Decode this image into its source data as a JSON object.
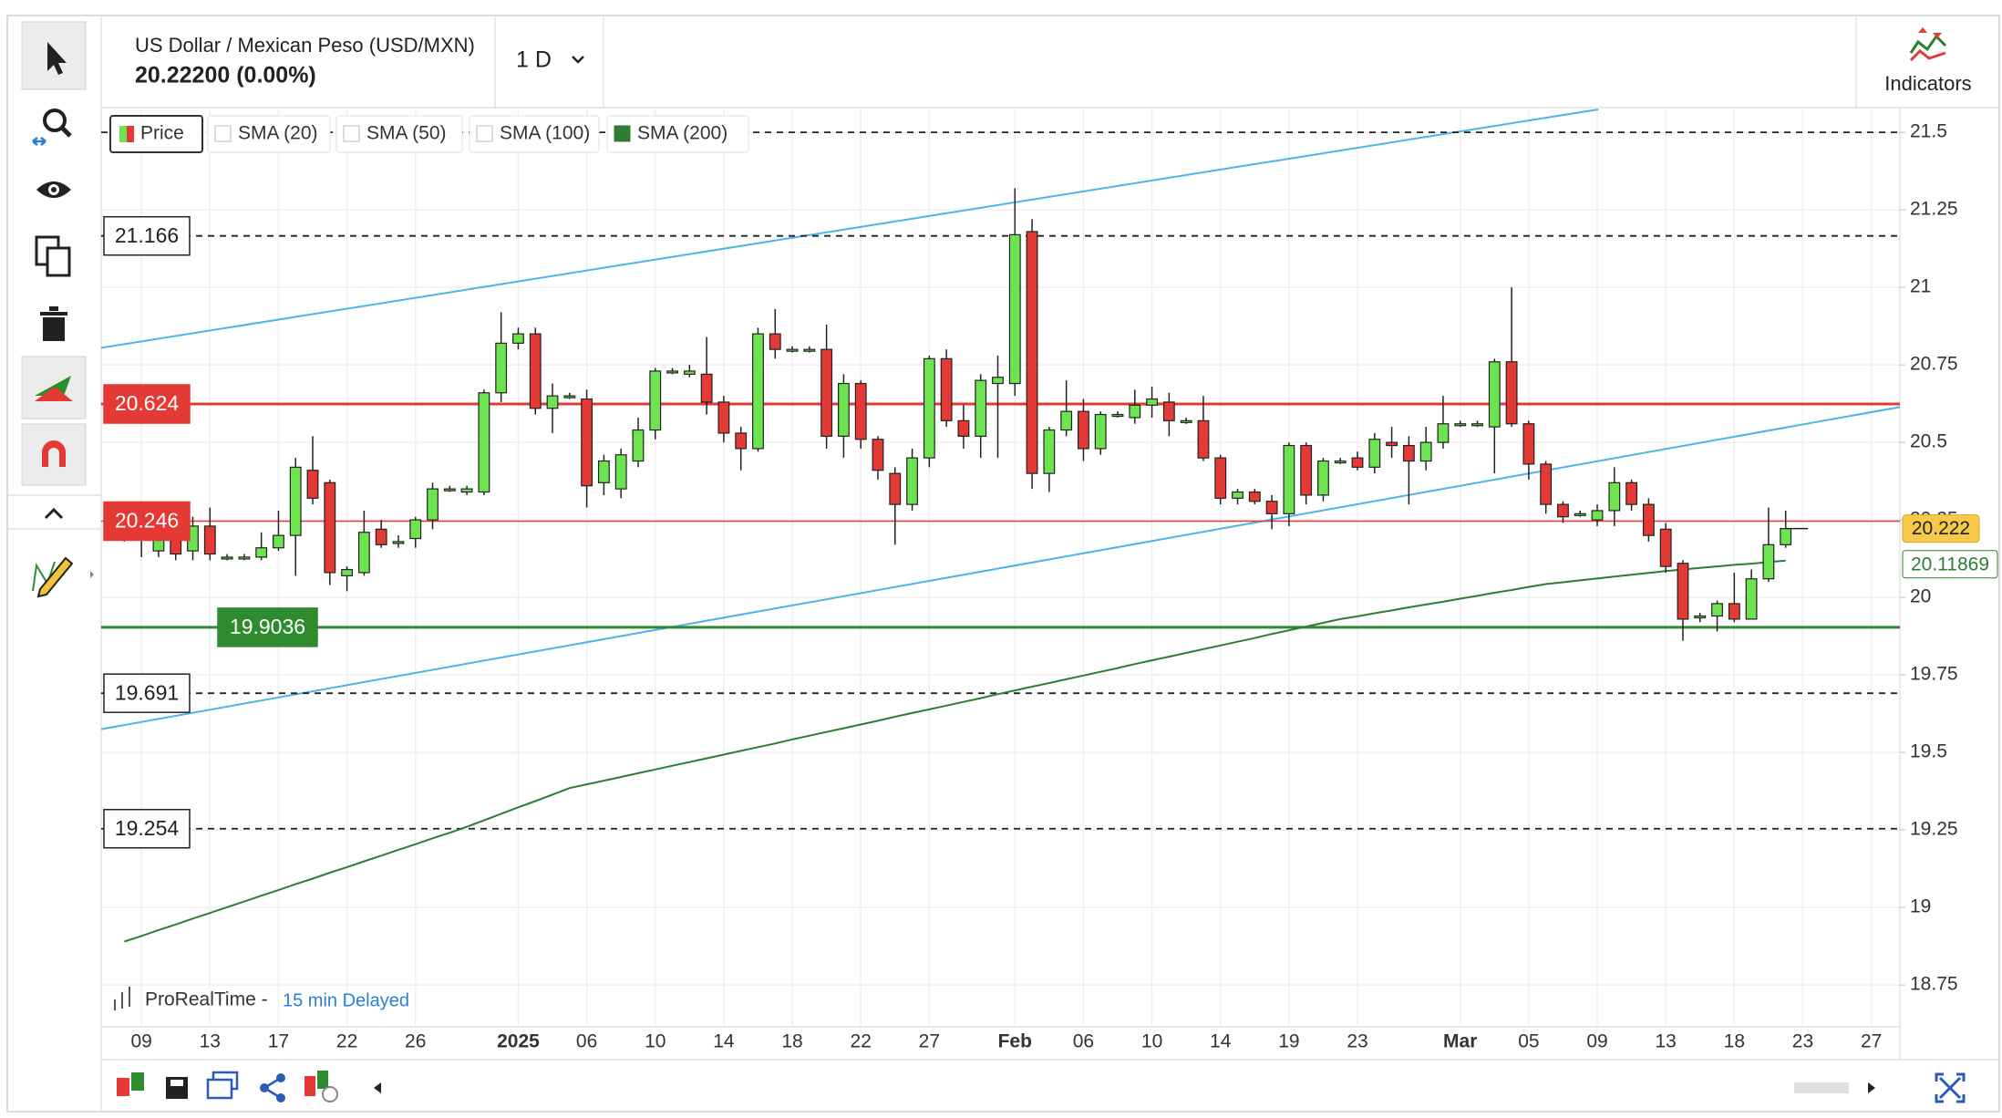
{
  "ui": {
    "instrument": "US Dollar / Mexican Peso (USD/MXN)",
    "quote": "20.22200 (0.00%)",
    "interval": "1 D",
    "indicators": "Indicators",
    "source": "ProRealTime -",
    "delay": "15 min Delayed"
  },
  "chart_data": {
    "type": "candlestick",
    "legend": [
      {
        "name": "Price"
      },
      {
        "name": "SMA (20)",
        "checked": false
      },
      {
        "name": "SMA (50)",
        "checked": false
      },
      {
        "name": "SMA (100)",
        "checked": false
      },
      {
        "name": "SMA (200)",
        "checked": true
      }
    ],
    "categories": [
      null,
      "09",
      null,
      null,
      null,
      "13",
      null,
      null,
      null,
      "17",
      null,
      null,
      null,
      "22",
      null,
      null,
      null,
      "26",
      null,
      null,
      null,
      null,
      null,
      "2025",
      null,
      null,
      null,
      "06",
      null,
      null,
      null,
      "10",
      null,
      null,
      null,
      "14",
      null,
      null,
      null,
      "18",
      null,
      null,
      null,
      "22",
      null,
      null,
      null,
      "27",
      null,
      null,
      null,
      null,
      "Feb",
      null,
      null,
      null,
      "06",
      null,
      null,
      null,
      "10",
      null,
      null,
      null,
      "14",
      null,
      null,
      null,
      "19",
      null,
      null,
      null,
      "23",
      null,
      null,
      null,
      null,
      null,
      "Mar",
      null,
      null,
      null,
      "05",
      null,
      null,
      null,
      "09",
      null,
      null,
      null,
      "13",
      null,
      null,
      null,
      "18",
      null,
      null,
      null,
      "23",
      null,
      null,
      null,
      "27"
    ],
    "open": [
      20.22,
      20.21,
      20.15,
      20.24,
      20.15,
      20.23,
      20.13,
      20.13,
      20.13,
      20.16,
      20.2,
      20.41,
      20.37,
      20.07,
      20.08,
      20.22,
      20.18,
      20.19,
      20.25,
      20.35,
      20.34,
      20.34,
      20.66,
      20.82,
      20.85,
      20.61,
      20.65,
      20.64,
      20.37,
      20.35,
      20.44,
      20.54,
      20.73,
      20.72,
      20.72,
      20.63,
      20.53,
      20.48,
      20.85,
      20.8,
      20.8,
      20.8,
      20.52,
      20.69,
      20.51,
      20.4,
      20.3,
      20.45,
      20.77,
      20.57,
      20.52,
      20.69,
      20.69,
      21.18,
      20.4,
      20.54,
      20.6,
      20.48,
      20.59,
      20.58,
      20.62,
      20.63,
      20.57,
      20.57,
      20.45,
      20.32,
      20.34,
      20.31,
      20.27,
      20.49,
      20.33,
      20.44,
      20.45,
      20.42,
      20.5,
      20.49,
      20.44,
      20.5,
      20.56,
      20.56,
      20.55,
      20.76,
      20.56,
      20.43,
      20.3,
      20.27,
      20.25,
      20.28,
      20.37,
      20.3,
      20.22,
      20.11,
      19.94,
      19.94,
      19.98,
      19.93,
      20.06,
      20.17,
      null,
      null,
      null,
      null,
      null
    ],
    "high": [
      20.26,
      20.24,
      20.3,
      20.27,
      20.26,
      20.29,
      20.14,
      20.14,
      20.21,
      20.28,
      20.45,
      20.52,
      20.38,
      20.1,
      20.28,
      20.25,
      20.2,
      20.26,
      20.37,
      20.36,
      20.36,
      20.67,
      20.92,
      20.87,
      20.87,
      20.69,
      20.66,
      20.67,
      20.46,
      20.48,
      20.58,
      20.74,
      20.74,
      20.75,
      20.84,
      20.65,
      20.55,
      20.87,
      20.93,
      20.81,
      20.81,
      20.88,
      20.72,
      20.7,
      20.52,
      20.42,
      20.48,
      20.78,
      20.8,
      20.62,
      20.72,
      20.78,
      21.32,
      21.22,
      20.55,
      20.7,
      20.64,
      20.6,
      20.6,
      20.67,
      20.68,
      20.66,
      20.58,
      20.65,
      20.46,
      20.35,
      20.35,
      20.33,
      20.5,
      20.5,
      20.45,
      20.45,
      20.47,
      20.53,
      20.55,
      20.52,
      20.55,
      20.65,
      20.57,
      20.57,
      20.77,
      21.0,
      20.57,
      20.44,
      20.31,
      20.28,
      20.3,
      20.42,
      20.38,
      20.32,
      20.24,
      20.12,
      19.95,
      19.99,
      20.08,
      20.09,
      20.29,
      20.28,
      null,
      null,
      null,
      null,
      null
    ],
    "low": [
      20.18,
      20.13,
      20.13,
      20.12,
      20.12,
      20.12,
      20.12,
      20.12,
      20.12,
      20.15,
      20.07,
      20.3,
      20.04,
      20.02,
      20.07,
      20.16,
      20.16,
      20.16,
      20.22,
      20.34,
      20.33,
      20.33,
      20.63,
      20.8,
      20.59,
      20.53,
      20.64,
      20.29,
      20.33,
      20.32,
      20.42,
      20.51,
      20.72,
      20.71,
      20.59,
      20.5,
      20.41,
      20.47,
      20.77,
      20.79,
      20.79,
      20.48,
      20.45,
      20.48,
      20.38,
      20.17,
      20.28,
      20.42,
      20.55,
      20.48,
      20.45,
      20.45,
      20.65,
      20.35,
      20.34,
      20.52,
      20.44,
      20.46,
      20.58,
      20.56,
      20.58,
      20.52,
      20.56,
      20.44,
      20.3,
      20.3,
      20.3,
      20.22,
      20.23,
      20.3,
      20.31,
      20.43,
      20.41,
      20.4,
      20.45,
      20.3,
      20.41,
      20.48,
      20.55,
      20.55,
      20.4,
      20.55,
      20.38,
      20.27,
      20.24,
      20.26,
      20.23,
      20.23,
      20.28,
      20.18,
      20.08,
      19.86,
      19.92,
      19.89,
      19.92,
      19.93,
      20.05,
      20.16,
      null,
      null,
      null,
      null,
      null
    ],
    "close": [
      20.2,
      20.19,
      20.24,
      20.14,
      20.23,
      20.14,
      20.13,
      20.13,
      20.16,
      20.2,
      20.42,
      20.32,
      20.08,
      20.09,
      20.21,
      20.17,
      20.18,
      20.25,
      20.35,
      20.35,
      20.35,
      20.66,
      20.82,
      20.85,
      20.61,
      20.65,
      20.65,
      20.36,
      20.44,
      20.46,
      20.54,
      20.73,
      20.73,
      20.73,
      20.63,
      20.53,
      20.48,
      20.85,
      20.8,
      20.8,
      20.8,
      20.52,
      20.69,
      20.51,
      20.41,
      20.3,
      20.45,
      20.77,
      20.57,
      20.52,
      20.7,
      20.71,
      21.17,
      20.4,
      20.54,
      20.6,
      20.48,
      20.59,
      20.59,
      20.62,
      20.64,
      20.57,
      20.57,
      20.45,
      20.32,
      20.34,
      20.31,
      20.27,
      20.49,
      20.33,
      20.44,
      20.44,
      20.42,
      20.51,
      20.49,
      20.44,
      20.5,
      20.56,
      20.56,
      20.56,
      20.76,
      20.56,
      20.43,
      20.3,
      20.26,
      20.27,
      20.28,
      20.37,
      20.3,
      20.2,
      20.1,
      19.93,
      19.94,
      19.98,
      19.93,
      20.06,
      20.17,
      20.222,
      null,
      null,
      null,
      null,
      null
    ],
    "up_color": "#6de34f",
    "down_color": "#e53935",
    "sma": {
      "color": "#2e7d32",
      "values": [
        18.89,
        18.908,
        18.927,
        18.945,
        18.964,
        18.982,
        19.001,
        19.019,
        19.038,
        19.056,
        19.075,
        19.093,
        19.112,
        19.13,
        19.149,
        19.167,
        19.186,
        19.204,
        19.223,
        19.241,
        19.26,
        19.281,
        19.302,
        19.323,
        19.343,
        19.364,
        19.385,
        19.397,
        19.409,
        19.421,
        19.433,
        19.445,
        19.457,
        19.469,
        19.481,
        19.493,
        19.505,
        19.517,
        19.529,
        19.542,
        19.554,
        19.566,
        19.578,
        19.59,
        19.602,
        19.615,
        19.627,
        19.639,
        19.651,
        19.663,
        19.675,
        19.688,
        19.7,
        19.712,
        19.724,
        19.736,
        19.748,
        19.76,
        19.772,
        19.785,
        19.797,
        19.809,
        19.821,
        19.833,
        19.845,
        19.857,
        19.869,
        19.882,
        19.894,
        19.906,
        19.918,
        19.93,
        19.939,
        19.949,
        19.958,
        19.968,
        19.977,
        19.986,
        19.996,
        20.005,
        20.015,
        20.024,
        20.034,
        20.043,
        20.049,
        20.055,
        20.061,
        20.067,
        20.073,
        20.079,
        20.085,
        20.09,
        20.095,
        20.1,
        20.105,
        20.109,
        20.114,
        20.11869,
        null,
        null,
        null,
        null,
        null
      ]
    },
    "trendlines": [
      {
        "color": "#4fb3e8",
        "x": [
          -1.35,
          86.06
        ],
        "y": [
          20.805,
          21.574
        ]
      },
      {
        "color": "#4fb3e8",
        "x": [
          -1.35,
          103.67
        ],
        "y": [
          19.575,
          20.614
        ]
      }
    ],
    "levels": [
      {
        "value": 21.5,
        "color": "#222222",
        "style": "dashed",
        "labeled": false
      },
      {
        "value": 21.166,
        "color": "#222222",
        "style": "dashed",
        "labeled": true
      },
      {
        "value": 20.624,
        "color": "#e53935",
        "style": "solid",
        "width": 3,
        "labeled": true
      },
      {
        "value": 20.246,
        "color": "#e53935",
        "style": "solid",
        "width": 1.5,
        "labeled": true
      },
      {
        "value": 19.9036,
        "color": "#2e8b2e",
        "style": "solid",
        "width": 3,
        "labeled": true
      },
      {
        "value": 19.691,
        "color": "#222222",
        "style": "dashed",
        "labeled": true
      },
      {
        "value": 19.254,
        "color": "#222222",
        "style": "dashed",
        "labeled": true
      }
    ],
    "xlim": [
      -1.35,
      103.67
    ],
    "ylim": [
      18.615,
      21.574
    ],
    "yticks": [
      18.75,
      19,
      19.25,
      19.5,
      19.75,
      20,
      20.25,
      20.5,
      20.75,
      21,
      21.25,
      21.5
    ],
    "grid": true
  }
}
